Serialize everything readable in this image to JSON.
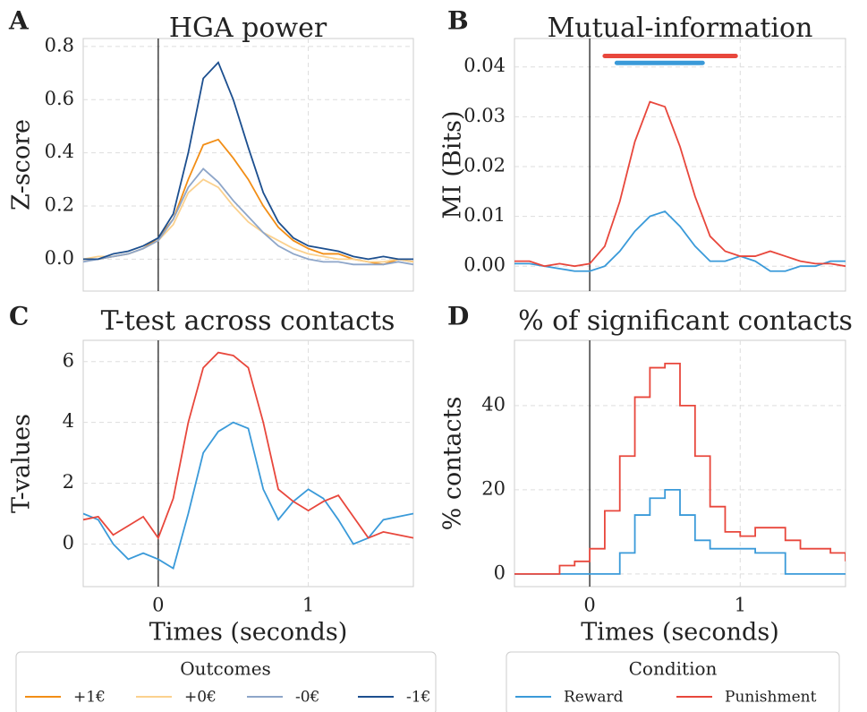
{
  "chart_data": [
    {
      "type": "line",
      "panel": "A",
      "title": "HGA power",
      "ylabel": "Z-score",
      "x": [
        -0.5,
        -0.4,
        -0.3,
        -0.2,
        -0.1,
        0,
        0.1,
        0.2,
        0.3,
        0.4,
        0.5,
        0.6,
        0.7,
        0.8,
        0.9,
        1.0,
        1.1,
        1.2,
        1.3,
        1.4,
        1.5,
        1.6,
        1.7
      ],
      "series": [
        {
          "name": "+1€",
          "color": "#f28e16",
          "values": [
            0,
            0,
            0.01,
            0.02,
            0.04,
            0.08,
            0.15,
            0.3,
            0.43,
            0.45,
            0.38,
            0.3,
            0.2,
            0.12,
            0.07,
            0.04,
            0.02,
            0.02,
            0,
            -0.01,
            -0.02,
            0,
            -0.01
          ]
        },
        {
          "name": "+0€",
          "color": "#fbd18e",
          "values": [
            0,
            0.01,
            0.01,
            0.02,
            0.04,
            0.07,
            0.13,
            0.25,
            0.3,
            0.27,
            0.2,
            0.14,
            0.1,
            0.07,
            0.04,
            0.02,
            0.01,
            0,
            0,
            -0.01,
            -0.01,
            0,
            -0.01
          ]
        },
        {
          "name": "-0€",
          "color": "#8ea6c9",
          "values": [
            -0.01,
            0,
            0.01,
            0.02,
            0.04,
            0.07,
            0.15,
            0.27,
            0.34,
            0.29,
            0.22,
            0.16,
            0.1,
            0.05,
            0.02,
            0,
            -0.01,
            -0.01,
            -0.02,
            -0.02,
            -0.02,
            -0.01,
            -0.02
          ]
        },
        {
          "name": "-1€",
          "color": "#1c4f8f",
          "values": [
            0,
            0,
            0.02,
            0.03,
            0.05,
            0.08,
            0.17,
            0.4,
            0.68,
            0.74,
            0.6,
            0.42,
            0.25,
            0.14,
            0.08,
            0.05,
            0.04,
            0.03,
            0.01,
            0,
            0.01,
            0,
            0
          ]
        }
      ],
      "xlim": [
        -0.5,
        1.7
      ],
      "ylim": [
        -0.12,
        0.83
      ],
      "xticks": [
        0,
        1
      ],
      "xtick_labels": false,
      "yticks": [
        {
          "value": 0,
          "label": "0.0"
        },
        0.2,
        0.4,
        0.6,
        0.8
      ],
      "grid": true,
      "vline": 0,
      "legend_title": "Outcomes"
    },
    {
      "type": "line",
      "panel": "B",
      "title": "Mutual-information",
      "ylabel": "MI (Bits)",
      "x": [
        -0.5,
        -0.4,
        -0.3,
        -0.2,
        -0.1,
        0,
        0.1,
        0.2,
        0.3,
        0.4,
        0.5,
        0.6,
        0.7,
        0.8,
        0.9,
        1.0,
        1.1,
        1.2,
        1.3,
        1.4,
        1.5,
        1.6,
        1.7
      ],
      "series": [
        {
          "name": "Reward",
          "color": "#3a9ad9",
          "values": [
            0.0005,
            0.0005,
            0,
            -0.0005,
            -0.001,
            -0.001,
            0,
            0.003,
            0.007,
            0.01,
            0.011,
            0.008,
            0.004,
            0.001,
            0.001,
            0.002,
            0.001,
            -0.001,
            -0.001,
            0,
            0,
            0.001,
            0.001
          ],
          "sig": [
            0.18,
            0.75
          ],
          "sig_y": 0.0408
        },
        {
          "name": "Punishment",
          "color": "#e8473c",
          "values": [
            0.001,
            0.001,
            0,
            0.0005,
            0,
            0.0005,
            0.004,
            0.013,
            0.025,
            0.033,
            0.032,
            0.024,
            0.014,
            0.006,
            0.003,
            0.002,
            0.002,
            0.003,
            0.002,
            0.001,
            0.0005,
            0.0005,
            0
          ],
          "sig": [
            0.1,
            0.97
          ],
          "sig_y": 0.0422
        }
      ],
      "xlim": [
        -0.5,
        1.7
      ],
      "ylim": [
        -0.005,
        0.0457
      ],
      "xticks": [
        0,
        1
      ],
      "xtick_labels": false,
      "yticks": [
        {
          "value": 0,
          "label": "0.00"
        },
        {
          "value": 0.01,
          "label": "0.01"
        },
        {
          "value": 0.02,
          "label": "0.02"
        },
        {
          "value": 0.03,
          "label": "0.03"
        },
        {
          "value": 0.04,
          "label": "0.04"
        }
      ],
      "grid": true,
      "vline": 0
    },
    {
      "type": "line",
      "panel": "C",
      "title": "T-test across contacts",
      "ylabel": "T-values",
      "xlabel": "Times (seconds)",
      "x": [
        -0.5,
        -0.4,
        -0.3,
        -0.2,
        -0.1,
        0,
        0.1,
        0.2,
        0.3,
        0.4,
        0.5,
        0.6,
        0.7,
        0.8,
        0.9,
        1.0,
        1.1,
        1.2,
        1.3,
        1.4,
        1.5,
        1.6,
        1.7
      ],
      "series": [
        {
          "name": "Reward",
          "color": "#3a9ad9",
          "values": [
            1.0,
            0.8,
            0,
            -0.5,
            -0.3,
            -0.5,
            -0.8,
            1.0,
            3.0,
            3.7,
            4.0,
            3.8,
            1.8,
            0.8,
            1.4,
            1.8,
            1.5,
            0.8,
            0,
            0.2,
            0.8,
            0.9,
            1.0
          ]
        },
        {
          "name": "Punishment",
          "color": "#e8473c",
          "values": [
            0.8,
            0.9,
            0.3,
            0.6,
            0.9,
            0.2,
            1.5,
            4.0,
            5.8,
            6.3,
            6.2,
            5.8,
            4.0,
            1.8,
            1.4,
            1.1,
            1.4,
            1.6,
            0.9,
            0.2,
            0.4,
            0.3,
            0.2
          ]
        }
      ],
      "xlim": [
        -0.5,
        1.7
      ],
      "ylim": [
        -1.4,
        6.7
      ],
      "xticks": [
        0,
        1
      ],
      "xtick_labels": true,
      "yticks": [
        0,
        2,
        4,
        6
      ],
      "grid": true,
      "vline": 0
    },
    {
      "type": "step",
      "panel": "D",
      "title": "% of significant contacts",
      "ylabel": "% contacts",
      "xlabel": "Times (seconds)",
      "x": [
        -0.5,
        -0.4,
        -0.3,
        -0.2,
        -0.1,
        0,
        0.1,
        0.2,
        0.3,
        0.4,
        0.5,
        0.6,
        0.7,
        0.8,
        0.9,
        1.0,
        1.1,
        1.2,
        1.3,
        1.4,
        1.5,
        1.6,
        1.7
      ],
      "series": [
        {
          "name": "Reward",
          "color": "#3a9ad9",
          "values": [
            0,
            0,
            0,
            0,
            0,
            0,
            0,
            5,
            14,
            18,
            20,
            14,
            8,
            6,
            6,
            6,
            5,
            5,
            0,
            0,
            0,
            0,
            0
          ]
        },
        {
          "name": "Punishment",
          "color": "#e8473c",
          "values": [
            0,
            0,
            0,
            2,
            3,
            6,
            15,
            28,
            42,
            49,
            50,
            40,
            28,
            16,
            10,
            9,
            11,
            11,
            8,
            6,
            6,
            5,
            3
          ]
        }
      ],
      "xlim": [
        -0.5,
        1.7
      ],
      "ylim": [
        -3,
        55.5
      ],
      "xticks": [
        0,
        1
      ],
      "xtick_labels": true,
      "yticks": [
        0,
        20,
        40
      ],
      "grid": true,
      "vline": 0,
      "legend_title": "Condition"
    }
  ]
}
